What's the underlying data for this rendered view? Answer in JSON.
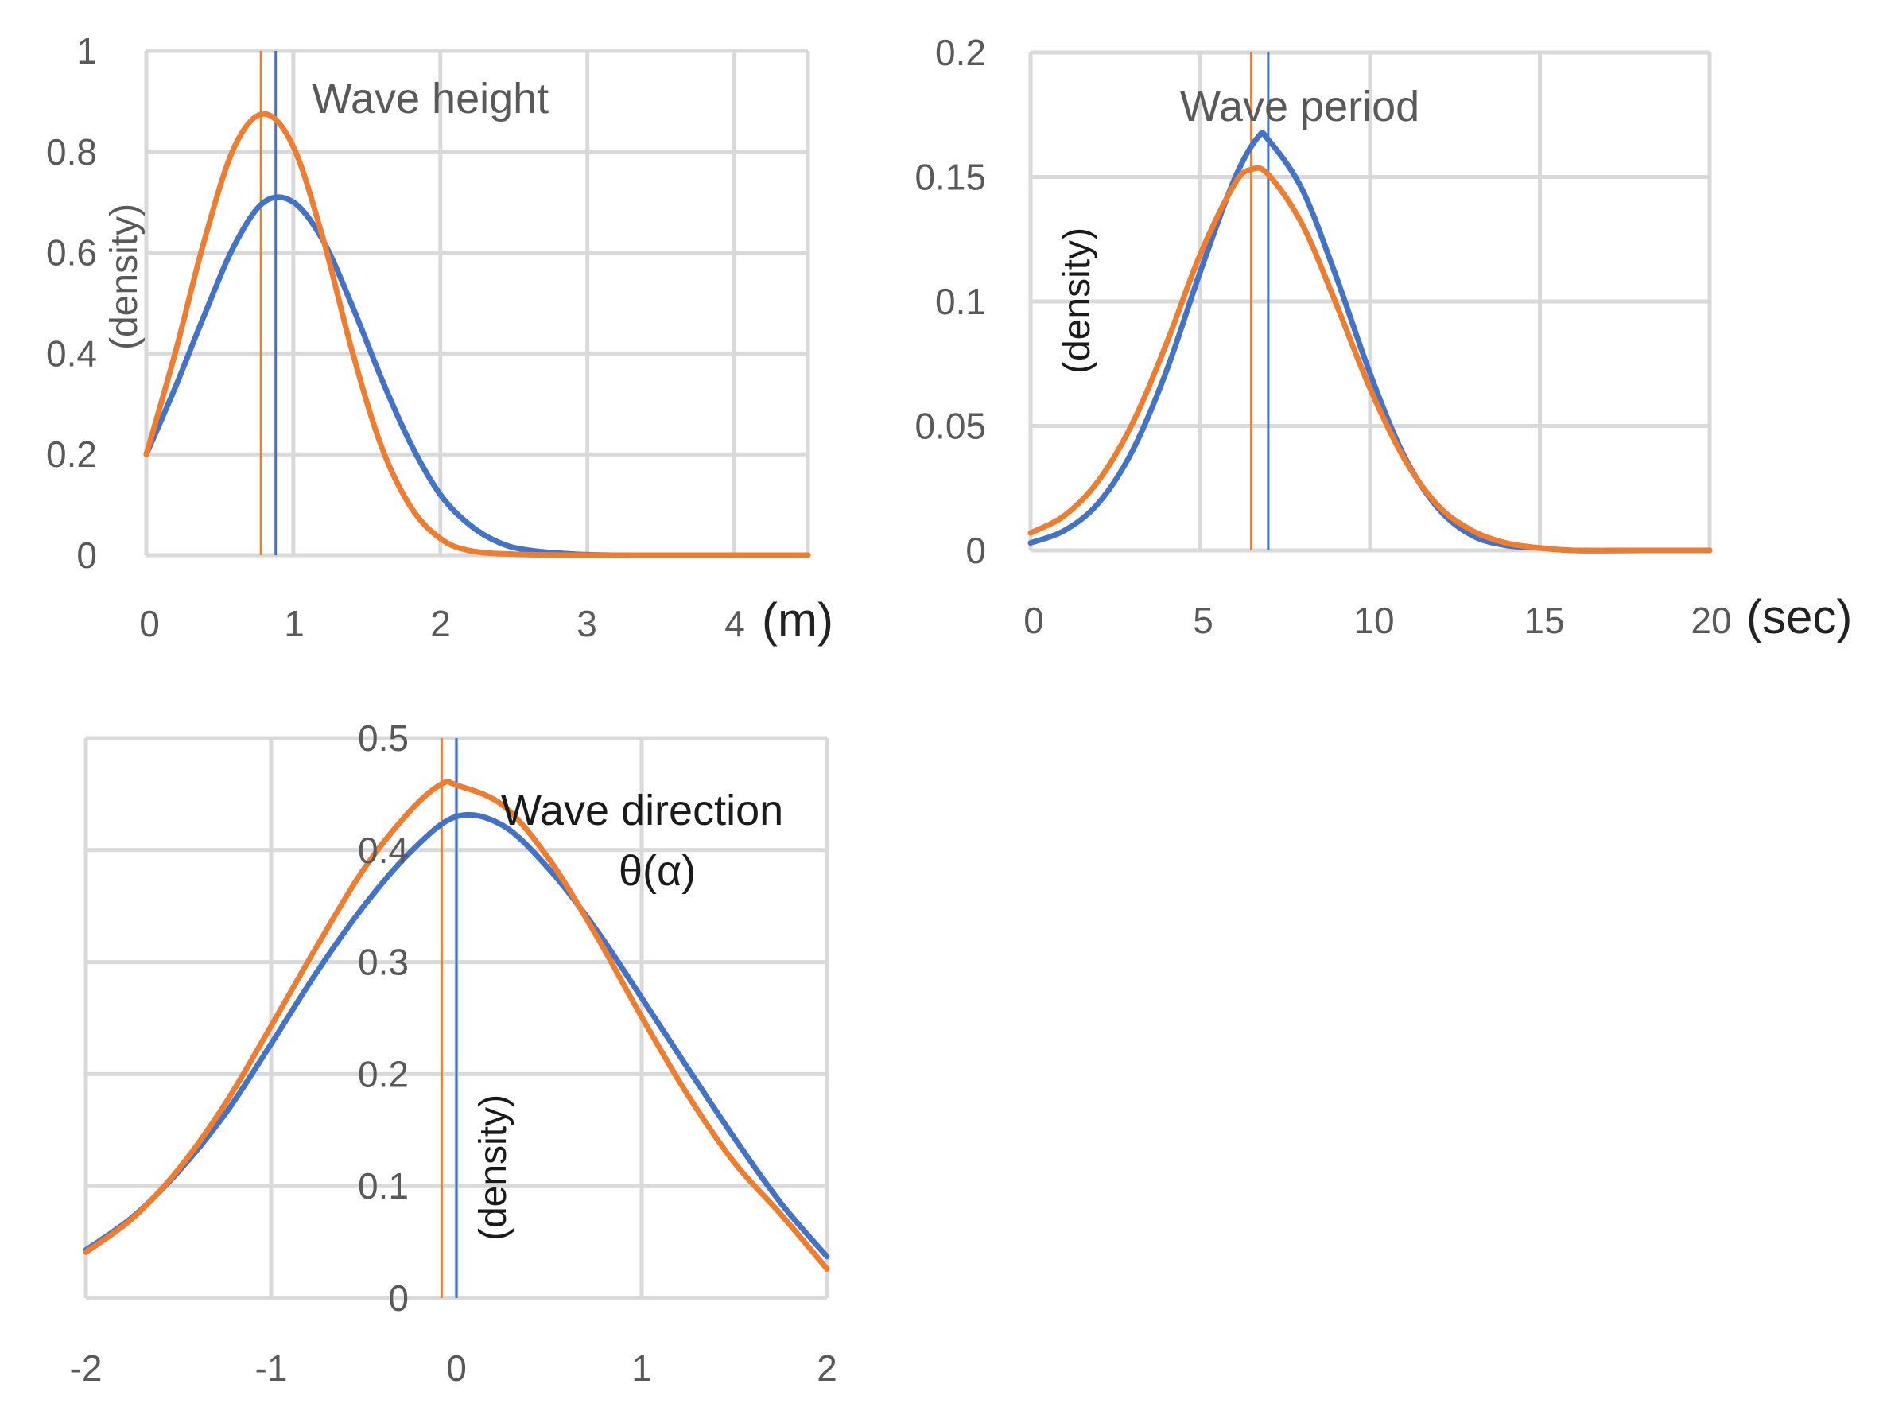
{
  "colors": {
    "series_a": "#ED7D31",
    "series_b": "#4472C4",
    "grid": "#D9D9D9",
    "tick": "#595959"
  },
  "chart_data": [
    {
      "id": "wave-height",
      "type": "line",
      "title": "Wave height",
      "ylabel": "(density)",
      "unit": "(m)",
      "xlim": [
        0,
        4.5
      ],
      "ylim": [
        0,
        1
      ],
      "xticks": [
        "0",
        "1",
        "2",
        "3",
        "4"
      ],
      "yticks": [
        "0",
        "0.2",
        "0.4",
        "0.6",
        "0.8",
        "1"
      ],
      "series": [
        {
          "name": "orange",
          "color": "#ED7D31",
          "marker_x": 0.78,
          "x": [
            0,
            0.2,
            0.4,
            0.6,
            0.8,
            1.0,
            1.2,
            1.4,
            1.6,
            1.8,
            2.0,
            2.2,
            2.5,
            3.0,
            3.5,
            4.0,
            4.5
          ],
          "y": [
            0.2,
            0.405,
            0.63,
            0.81,
            0.875,
            0.81,
            0.63,
            0.405,
            0.215,
            0.095,
            0.033,
            0.009,
            0.002,
            0.0,
            0.0,
            0.0,
            0.0
          ]
        },
        {
          "name": "blue",
          "color": "#4472C4",
          "marker_x": 0.88,
          "x": [
            0,
            0.2,
            0.4,
            0.6,
            0.8,
            1.0,
            1.2,
            1.4,
            1.6,
            1.8,
            2.0,
            2.2,
            2.4,
            2.6,
            3.0,
            3.5,
            4.0,
            4.5
          ],
          "y": [
            0.2,
            0.335,
            0.48,
            0.615,
            0.7,
            0.7,
            0.625,
            0.495,
            0.35,
            0.22,
            0.12,
            0.06,
            0.025,
            0.01,
            0.001,
            0.0,
            0.0,
            0.0
          ]
        }
      ]
    },
    {
      "id": "wave-period",
      "type": "line",
      "title": "Wave period",
      "ylabel": "(density)",
      "unit": "(sec)",
      "xlim": [
        0,
        20
      ],
      "ylim": [
        0,
        0.2
      ],
      "xticks": [
        "0",
        "5",
        "10",
        "15",
        "20"
      ],
      "yticks": [
        "0",
        "0.05",
        "0.1",
        "0.15",
        "0.2"
      ],
      "series": [
        {
          "name": "orange",
          "color": "#ED7D31",
          "marker_x": 6.5,
          "x": [
            0,
            1,
            2,
            3,
            4,
            5,
            6,
            6.5,
            7,
            8,
            9,
            10,
            11,
            12,
            13,
            14,
            15,
            16,
            18,
            20
          ],
          "y": [
            0.007,
            0.014,
            0.028,
            0.051,
            0.083,
            0.119,
            0.147,
            0.153,
            0.151,
            0.131,
            0.099,
            0.065,
            0.037,
            0.018,
            0.008,
            0.003,
            0.001,
            0.0,
            0.0,
            0.0
          ]
        },
        {
          "name": "blue",
          "color": "#4472C4",
          "marker_x": 7.0,
          "x": [
            0,
            1,
            2,
            3,
            4,
            5,
            6,
            6.7,
            7,
            8,
            9,
            10,
            11,
            12,
            13,
            14,
            15,
            16,
            18,
            20
          ],
          "y": [
            0.003,
            0.008,
            0.019,
            0.04,
            0.072,
            0.112,
            0.149,
            0.166,
            0.165,
            0.145,
            0.11,
            0.071,
            0.038,
            0.017,
            0.006,
            0.002,
            0.001,
            0.0,
            0.0,
            0.0
          ]
        }
      ]
    },
    {
      "id": "wave-direction",
      "type": "line",
      "title": "Wave direction",
      "title_line2": "θ(α)",
      "ylabel": "(density)",
      "xlim": [
        -2,
        2
      ],
      "ylim": [
        0,
        0.5
      ],
      "xticks": [
        "-2",
        "-1",
        "0",
        "1",
        "2"
      ],
      "yticks": [
        "0",
        "0.1",
        "0.2",
        "0.3",
        "0.4",
        "0.5"
      ],
      "series": [
        {
          "name": "orange",
          "color": "#ED7D31",
          "marker_x": -0.08,
          "x": [
            -2.0,
            -1.75,
            -1.5,
            -1.25,
            -1.0,
            -0.75,
            -0.5,
            -0.25,
            -0.08,
            0.0,
            0.25,
            0.5,
            0.75,
            1.0,
            1.25,
            1.5,
            1.75,
            2.0
          ],
          "y": [
            0.041,
            0.071,
            0.115,
            0.173,
            0.243,
            0.315,
            0.383,
            0.435,
            0.459,
            0.458,
            0.44,
            0.392,
            0.325,
            0.251,
            0.181,
            0.121,
            0.075,
            0.026
          ]
        },
        {
          "name": "blue",
          "color": "#4472C4",
          "marker_x": 0.0,
          "x": [
            -2.0,
            -1.75,
            -1.5,
            -1.25,
            -1.0,
            -0.75,
            -0.5,
            -0.25,
            0.0,
            0.25,
            0.5,
            0.75,
            1.0,
            1.25,
            1.5,
            1.75,
            2.0
          ],
          "y": [
            0.043,
            0.072,
            0.113,
            0.164,
            0.227,
            0.292,
            0.35,
            0.398,
            0.43,
            0.422,
            0.383,
            0.33,
            0.268,
            0.205,
            0.143,
            0.085,
            0.037
          ]
        }
      ]
    }
  ]
}
